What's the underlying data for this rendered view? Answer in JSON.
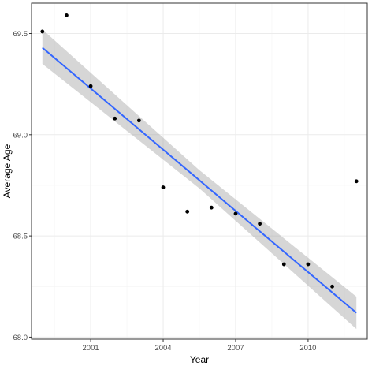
{
  "chart_data": {
    "type": "scatter",
    "xlabel": "Year",
    "ylabel": "Average Age",
    "xlim": [
      1998.55,
      2012.45
    ],
    "ylim": [
      67.99,
      69.65
    ],
    "x_ticks": [
      2001,
      2004,
      2007,
      2010
    ],
    "y_ticks": [
      68.0,
      68.5,
      69.0,
      69.5
    ],
    "x_tick_labels": [
      "2001",
      "2004",
      "2007",
      "2010"
    ],
    "y_tick_labels": [
      "68.0",
      "68.5",
      "69.0",
      "69.5"
    ],
    "x_minor_ticks": [
      1999.5,
      2002.5,
      2005.5,
      2008.5,
      2011.5
    ],
    "y_minor_ticks": [
      68.25,
      68.75,
      69.25
    ],
    "grid": true,
    "points": [
      {
        "x": 1999,
        "y": 69.51
      },
      {
        "x": 2000,
        "y": 69.59
      },
      {
        "x": 2001,
        "y": 69.24
      },
      {
        "x": 2002,
        "y": 69.08
      },
      {
        "x": 2003,
        "y": 69.07
      },
      {
        "x": 2004,
        "y": 68.74
      },
      {
        "x": 2005,
        "y": 68.62
      },
      {
        "x": 2006,
        "y": 68.64
      },
      {
        "x": 2007,
        "y": 68.61
      },
      {
        "x": 2008,
        "y": 68.56
      },
      {
        "x": 2009,
        "y": 68.36
      },
      {
        "x": 2010,
        "y": 68.36
      },
      {
        "x": 2011,
        "y": 68.25
      },
      {
        "x": 2012,
        "y": 68.77
      }
    ],
    "trend_line": {
      "method": "linear",
      "x": [
        1999,
        2012
      ],
      "y": [
        69.43,
        68.12
      ]
    },
    "confidence_band": {
      "x": [
        1999,
        2005.5,
        2012
      ],
      "lower": [
        69.35,
        68.735,
        68.04
      ],
      "upper": [
        69.52,
        68.825,
        68.2
      ]
    },
    "colors": {
      "trend_line": "#3366FF",
      "band": "#999999",
      "points": "#000000",
      "grid": "#ebebeb",
      "border": "#333333"
    }
  }
}
